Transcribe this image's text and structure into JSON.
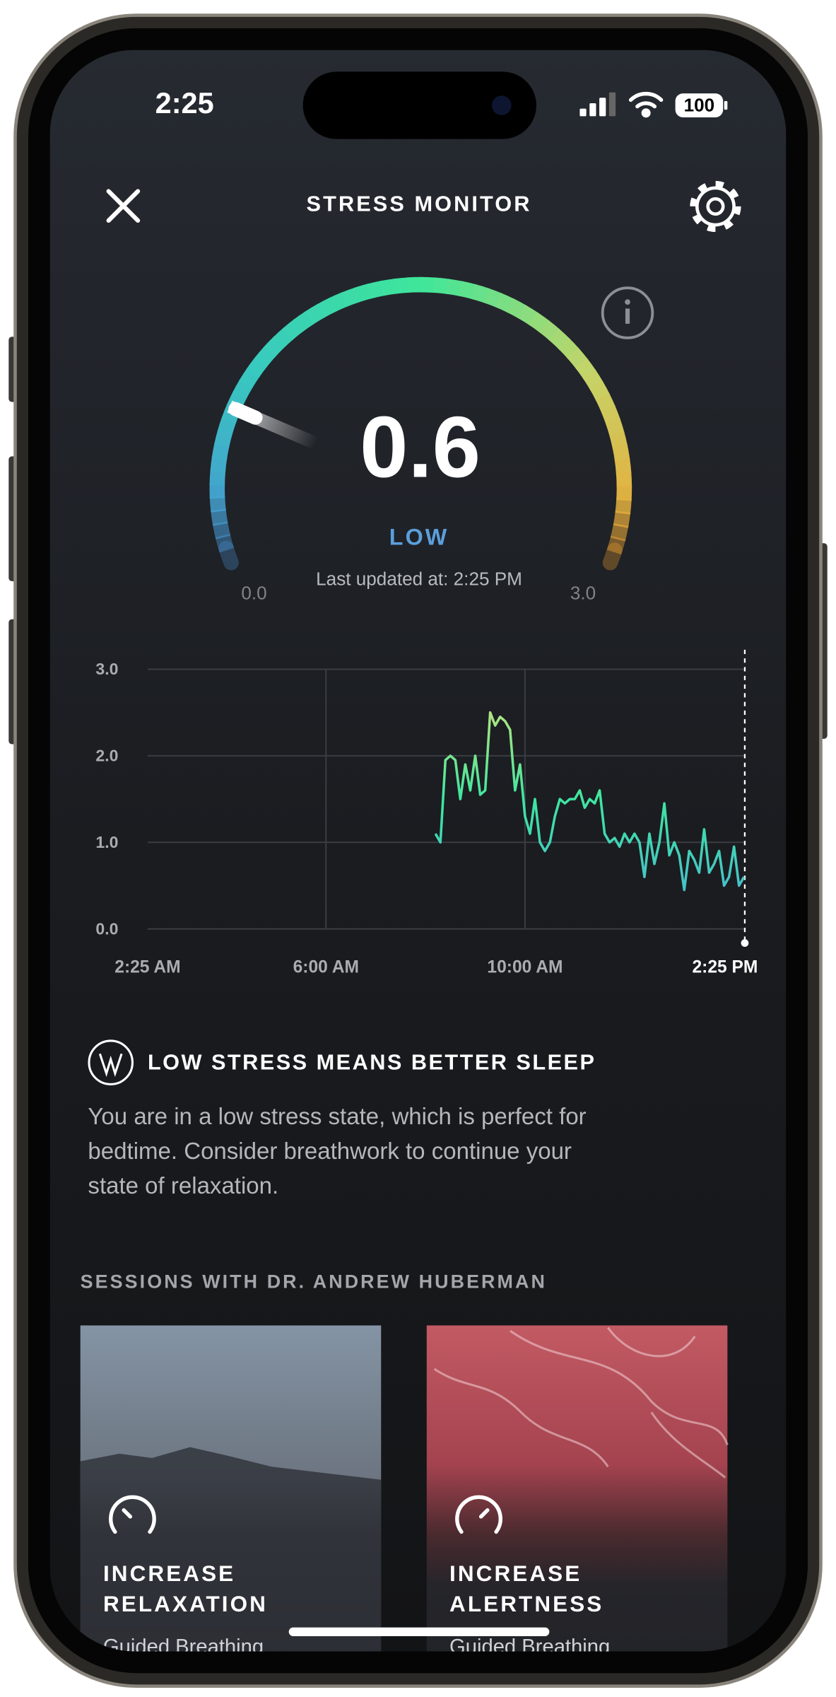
{
  "status_bar": {
    "time": "2:25",
    "battery": "100"
  },
  "header": {
    "title": "STRESS MONITOR"
  },
  "gauge": {
    "value": 0.6,
    "level": "LOW",
    "updated": "Last updated at: 2:25 PM",
    "min": {
      "value": 0,
      "label": "0.0"
    },
    "max": {
      "value": 3,
      "label": "3.0"
    },
    "colors": [
      "#4a8fd4",
      "#38c8c0",
      "#3ee69a",
      "#c6d468",
      "#f0a02e"
    ]
  },
  "chart_data": {
    "type": "line",
    "x": [
      8.2,
      8.3,
      8.4,
      8.5,
      8.6,
      8.7,
      8.8,
      8.9,
      9.0,
      9.1,
      9.2,
      9.3,
      9.4,
      9.5,
      9.6,
      9.7,
      9.8,
      9.9,
      10.0,
      10.1,
      10.2,
      10.3,
      10.4,
      10.5,
      10.6,
      10.7,
      10.8,
      10.9,
      11.0,
      11.1,
      11.2,
      11.3,
      11.4,
      11.5,
      11.6,
      11.7,
      11.8,
      11.9,
      12.0,
      12.1,
      12.2,
      12.3,
      12.4,
      12.5,
      12.6,
      12.7,
      12.8,
      12.9,
      13.0,
      13.1,
      13.2,
      13.3,
      13.4,
      13.5,
      13.6,
      13.7,
      13.8,
      13.9,
      14.0,
      14.1,
      14.2,
      14.3,
      14.4
    ],
    "values": [
      1.1,
      1.0,
      1.95,
      2.0,
      1.95,
      1.5,
      1.9,
      1.6,
      2.0,
      1.55,
      1.6,
      2.5,
      2.35,
      2.45,
      2.4,
      2.3,
      1.6,
      1.9,
      1.3,
      1.1,
      1.5,
      1.0,
      0.9,
      1.0,
      1.3,
      1.5,
      1.45,
      1.5,
      1.5,
      1.6,
      1.4,
      1.5,
      1.45,
      1.6,
      1.1,
      1.0,
      1.05,
      0.95,
      1.1,
      1.0,
      1.1,
      1.0,
      0.6,
      1.1,
      0.75,
      1.0,
      1.45,
      0.85,
      1.0,
      0.85,
      0.45,
      0.9,
      0.8,
      0.65,
      1.15,
      0.65,
      0.75,
      0.9,
      0.5,
      0.6,
      0.95,
      0.5,
      0.6
    ],
    "colors": [
      "#4ab0dc",
      "#3ee6a0",
      "#e8e270"
    ],
    "xlim": [
      2.4167,
      14.4167
    ],
    "xticks": [
      {
        "value": 2.4167,
        "label": "2:25 AM"
      },
      {
        "value": 6,
        "label": "6:00 AM"
      },
      {
        "value": 10,
        "label": "10:00 AM"
      },
      {
        "value": 14.4167,
        "label": "2:25 PM"
      }
    ],
    "ylim": [
      0,
      3
    ],
    "yticks": [
      {
        "value": 0,
        "label": "0.0"
      },
      {
        "value": 1,
        "label": "1.0"
      },
      {
        "value": 2,
        "label": "2.0"
      },
      {
        "value": 3,
        "label": "3.0"
      }
    ],
    "grid": true
  },
  "insight": {
    "title": "LOW STRESS MEANS BETTER SLEEP",
    "body_lines": [
      "You are in a low stress state, which is perfect for",
      "bedtime. Consider breathwork to continue your",
      "state of relaxation."
    ]
  },
  "sessions": {
    "heading": "SESSIONS WITH DR. ANDREW HUBERMAN",
    "cards": [
      {
        "title_lines": [
          "INCREASE",
          "RELAXATION"
        ],
        "subtitle": "Guided Breathing"
      },
      {
        "title_lines": [
          "INCREASE",
          "ALERTNESS"
        ],
        "subtitle": "Guided Breathing"
      }
    ]
  }
}
